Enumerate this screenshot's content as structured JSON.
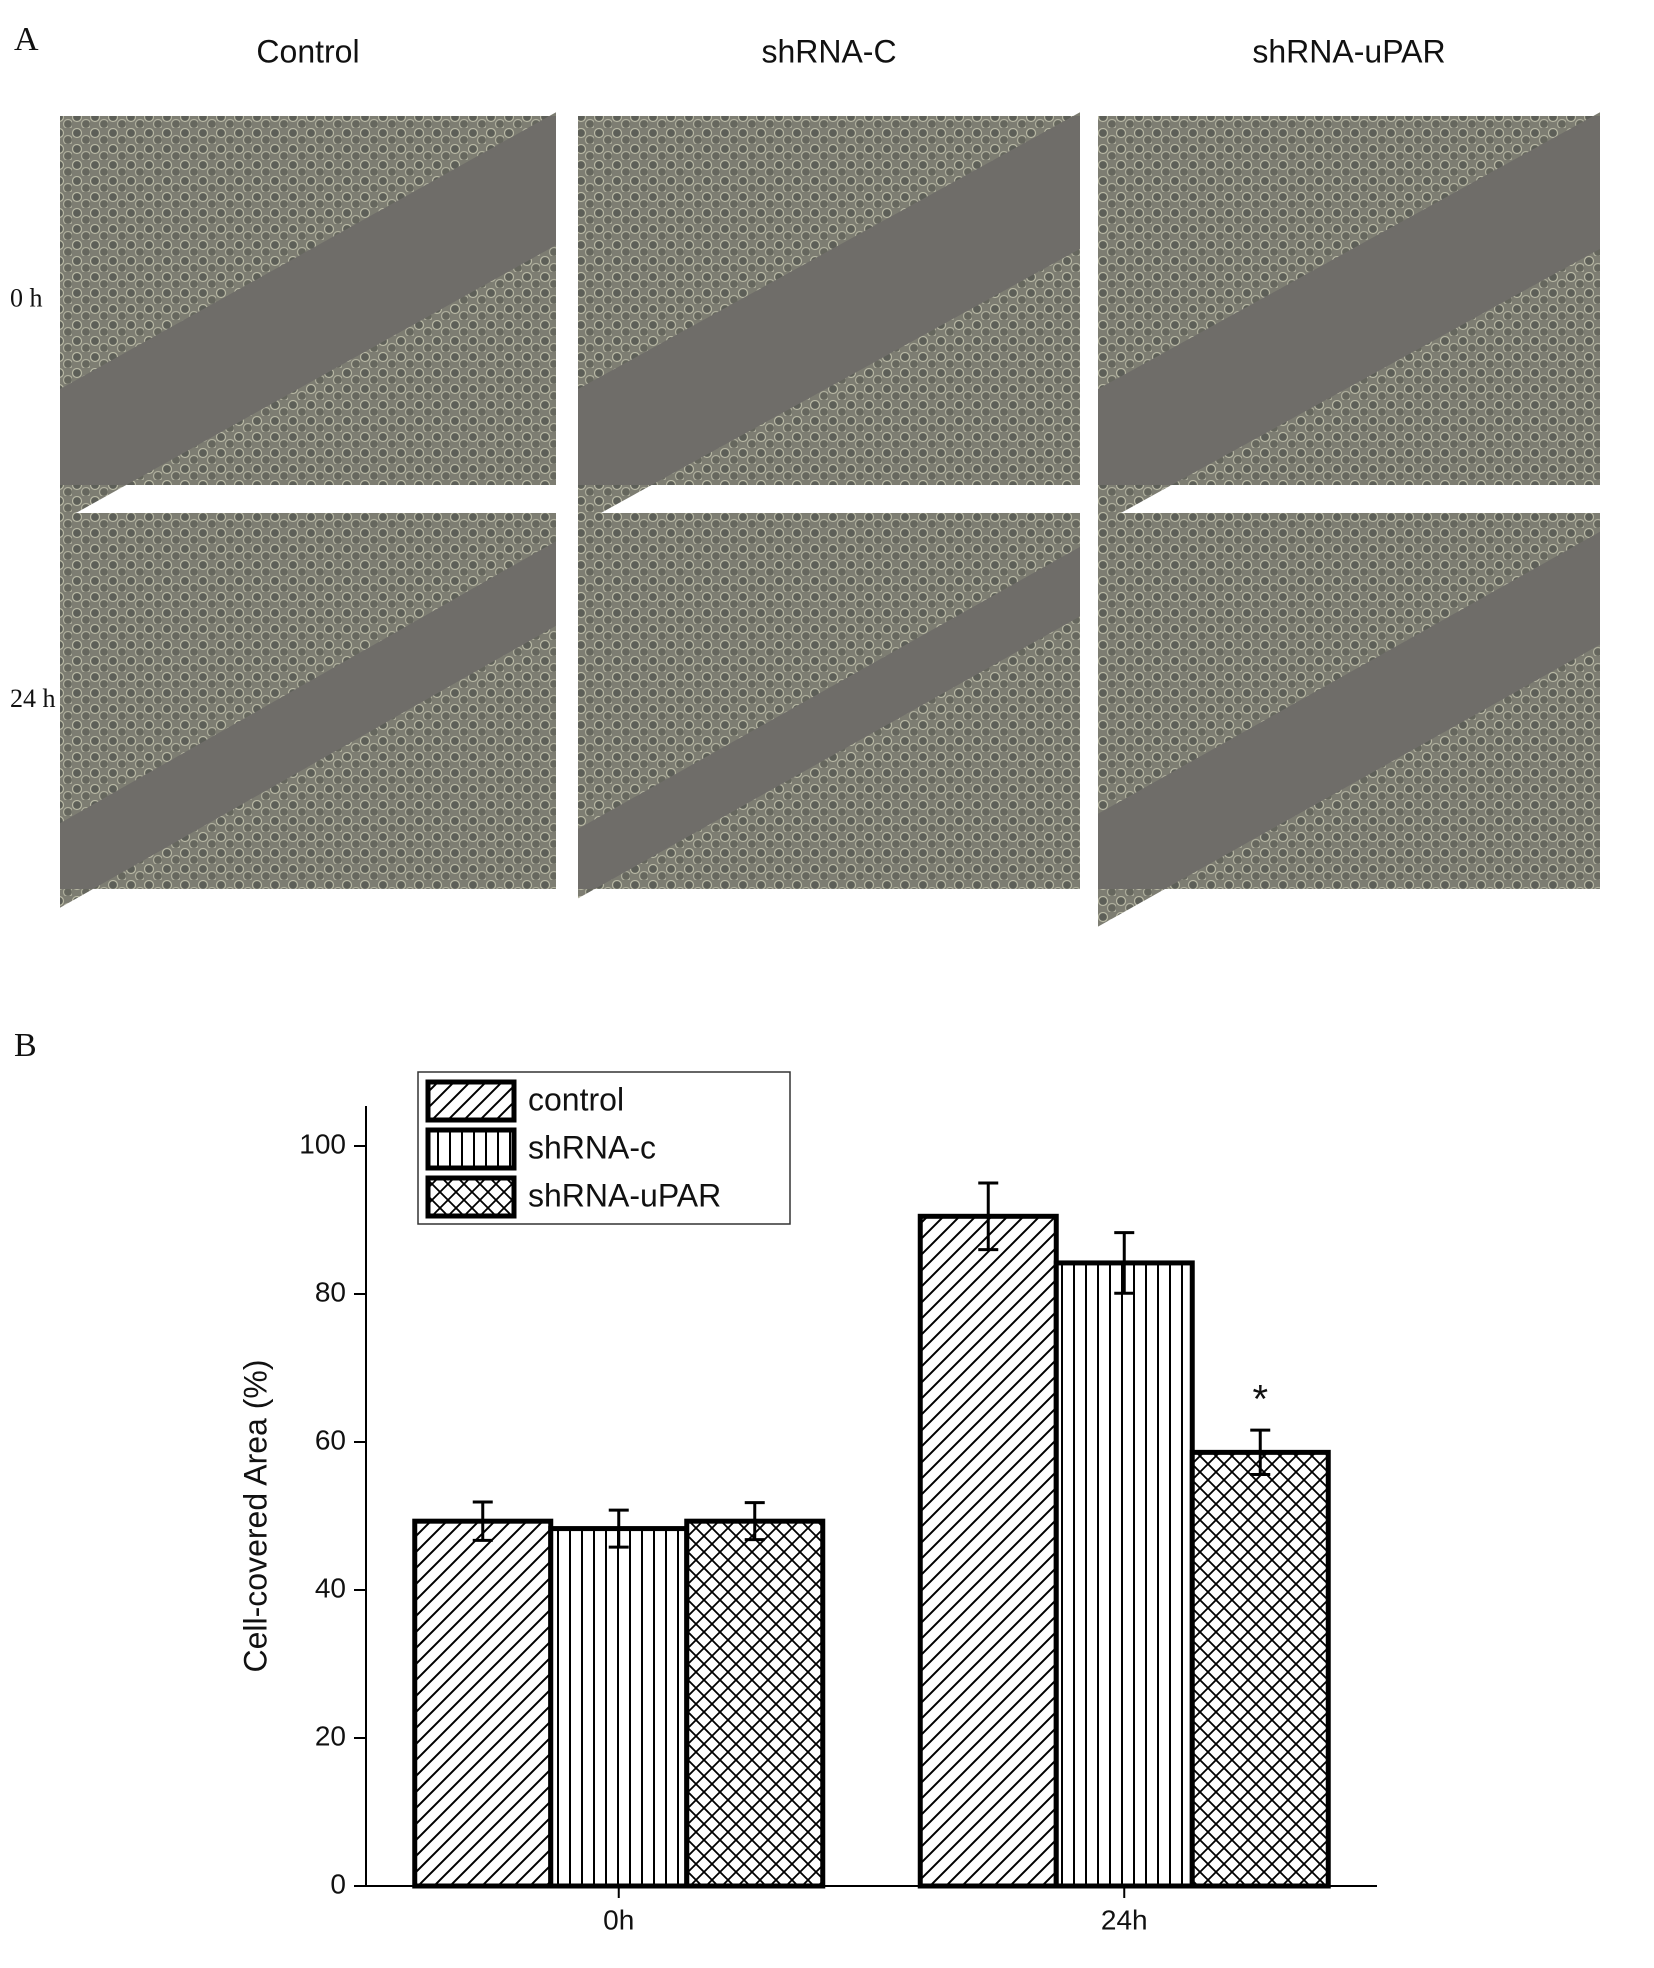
{
  "panel_a": {
    "label": "A",
    "columns": [
      "Control",
      "shRNA-C",
      "shRNA-uPAR"
    ],
    "rows": [
      "0 h",
      "24 h"
    ]
  },
  "chart_data": {
    "type": "bar",
    "panel_label": "B",
    "y_label": "Cell-covered Area (%)",
    "categories": [
      "0h",
      "24h"
    ],
    "series": [
      {
        "name": "control",
        "color": "#000000",
        "pattern": "diagonal",
        "values": [
          49.3,
          90.5
        ],
        "errors": [
          2.6,
          4.5
        ]
      },
      {
        "name": "shRNA-c",
        "color": "#000000",
        "pattern": "vertical",
        "values": [
          48.3,
          84.2
        ],
        "errors": [
          2.5,
          4.1
        ]
      },
      {
        "name": "shRNA-uPAR",
        "color": "#000000",
        "pattern": "crosshatch",
        "values": [
          49.3,
          58.6
        ],
        "errors": [
          2.5,
          3.0
        ]
      }
    ],
    "annotations": [
      {
        "text": "*",
        "series": "shRNA-uPAR",
        "category": "24h"
      }
    ],
    "ylim": [
      0,
      100
    ],
    "yticks": [
      0,
      20,
      40,
      60,
      80,
      100
    ],
    "legend": "upper-left"
  }
}
